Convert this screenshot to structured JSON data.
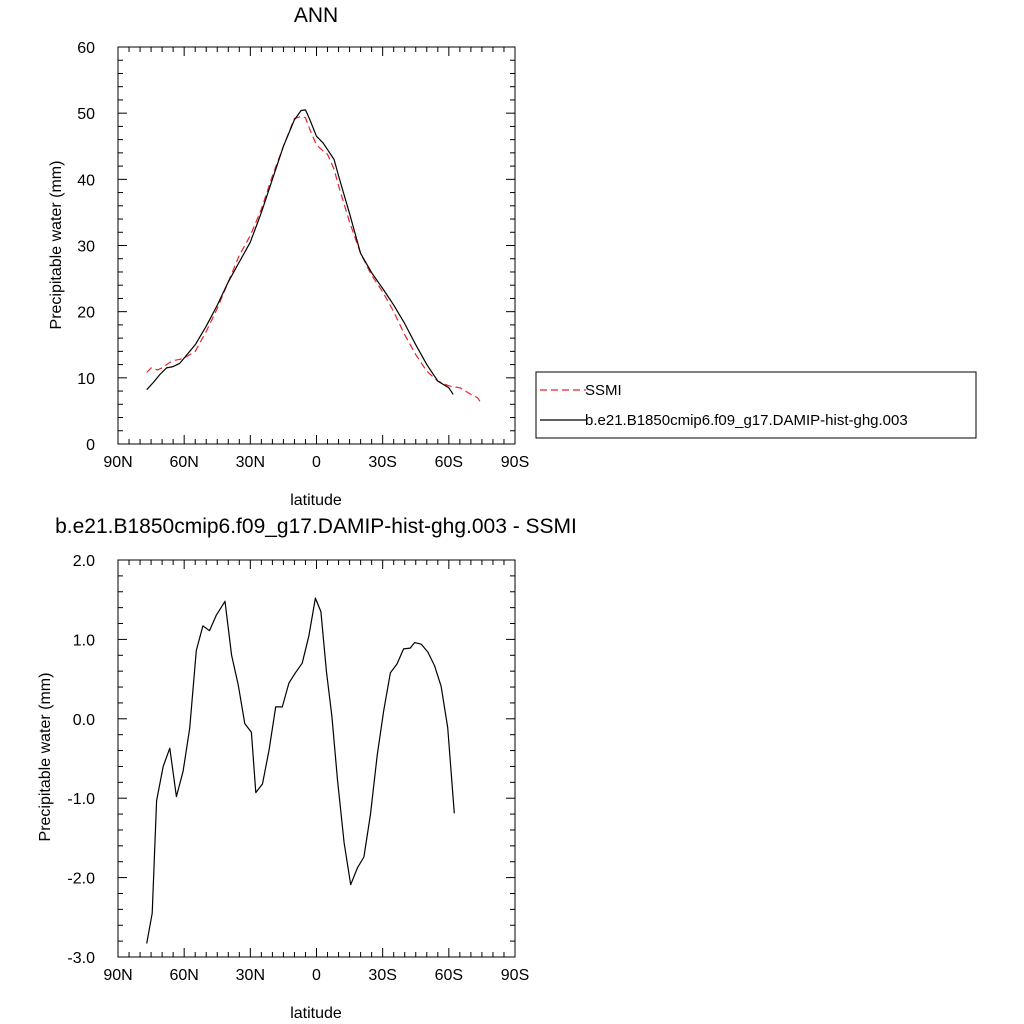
{
  "chart_data": [
    {
      "type": "line",
      "title": "ANN",
      "xlabel": "latitude",
      "ylabel": "Precipitable water (mm)",
      "xlim": [
        90,
        -90
      ],
      "ylim": [
        0,
        60
      ],
      "xticks": [
        90,
        60,
        30,
        0,
        -30,
        -60,
        -90
      ],
      "xtick_labels": [
        "90N",
        "60N",
        "30N",
        "0",
        "30S",
        "60S",
        "90S"
      ],
      "yticks": [
        0,
        10,
        20,
        30,
        40,
        50,
        60
      ],
      "ytick_labels": [
        "0",
        "10",
        "20",
        "30",
        "40",
        "50",
        "60"
      ],
      "legend_position": "right",
      "series": [
        {
          "name": "SSMI",
          "color": "#e8242c",
          "dash": "dashed",
          "x": [
            77,
            75,
            72,
            70,
            68,
            65,
            62,
            60,
            55,
            50,
            45,
            40,
            35,
            30,
            25,
            20,
            15,
            10,
            7,
            5,
            3,
            0,
            -3,
            -5,
            -8,
            -10,
            -15,
            -20,
            -25,
            -30,
            -35,
            -40,
            -45,
            -50,
            -55,
            -60,
            -65,
            -70,
            -73,
            -75
          ],
          "y": [
            10.8,
            11.5,
            11.2,
            11.5,
            12.0,
            12.6,
            12.8,
            13.0,
            14.0,
            17.0,
            20.5,
            24.5,
            28.5,
            31.5,
            35.5,
            40.5,
            45.0,
            49.2,
            49.5,
            49.3,
            47.5,
            45.2,
            44.3,
            43.8,
            41.5,
            39.0,
            33.5,
            28.8,
            25.5,
            23.0,
            20.0,
            16.5,
            13.5,
            11.0,
            9.5,
            8.8,
            8.5,
            7.5,
            7.0,
            6.0
          ]
        },
        {
          "name": "b.e21.B1850cmip6.f09_g17.DAMIP-hist-ghg.003",
          "color": "#000000",
          "dash": "solid",
          "x": [
            77,
            74,
            71,
            68,
            65,
            62,
            60,
            55,
            50,
            45,
            40,
            35,
            30,
            25,
            20,
            15,
            10,
            7,
            5,
            3,
            0,
            -3,
            -5,
            -8,
            -10,
            -15,
            -20,
            -25,
            -30,
            -35,
            -40,
            -45,
            -50,
            -55,
            -60,
            -62
          ],
          "y": [
            8.2,
            9.3,
            10.5,
            11.5,
            11.7,
            12.2,
            13.0,
            15.0,
            17.8,
            21.0,
            24.5,
            27.5,
            30.5,
            35.0,
            40.0,
            45.0,
            49.0,
            50.4,
            50.5,
            49.0,
            46.5,
            45.5,
            44.5,
            43.0,
            40.5,
            34.8,
            28.8,
            25.9,
            23.5,
            21.0,
            18.2,
            15.0,
            12.0,
            9.5,
            8.5,
            7.5
          ]
        }
      ]
    },
    {
      "type": "line",
      "title": "b.e21.B1850cmip6.f09_g17.DAMIP-hist-ghg.003 - SSMI",
      "xlabel": "latitude",
      "ylabel": "Precipitable water (mm)",
      "xlim": [
        90,
        -90
      ],
      "ylim": [
        -3.0,
        2.0
      ],
      "xticks": [
        90,
        60,
        30,
        0,
        -30,
        -60,
        -90
      ],
      "xtick_labels": [
        "90N",
        "60N",
        "30N",
        "0",
        "30S",
        "60S",
        "90S"
      ],
      "yticks": [
        -3.0,
        -2.0,
        -1.0,
        0.0,
        1.0,
        2.0
      ],
      "ytick_labels": [
        "-3.0",
        "-2.0",
        "-1.0",
        "0.0",
        "1.0",
        "2.0"
      ],
      "series": [
        {
          "name": "",
          "color": "#000000",
          "dash": "solid",
          "x": [
            77,
            74.5,
            72.5,
            69.5,
            66.5,
            63.5,
            60.5,
            57.5,
            54.5,
            51.5,
            48.5,
            45.5,
            41.5,
            38.5,
            35.5,
            32.5,
            29.5,
            27.5,
            24.5,
            21.5,
            18.5,
            15.5,
            12.5,
            9.5,
            6.5,
            3.5,
            0.5,
            -2.0,
            -4.5,
            -7.0,
            -9.5,
            -12.5,
            -15.5,
            -18.5,
            -21.5,
            -24.5,
            -27.5,
            -30.5,
            -33.5,
            -36.5,
            -39.5,
            -42.5,
            -44.5,
            -47.5,
            -50.5,
            -53.5,
            -56.5,
            -59.5,
            -62.5
          ],
          "y": [
            -2.83,
            -2.45,
            -1.03,
            -0.6,
            -0.37,
            -0.98,
            -0.66,
            -0.12,
            0.86,
            1.17,
            1.11,
            1.3,
            1.48,
            0.8,
            0.43,
            -0.06,
            -0.17,
            -0.93,
            -0.82,
            -0.39,
            0.15,
            0.15,
            0.45,
            0.58,
            0.7,
            1.04,
            1.52,
            1.35,
            0.6,
            0.03,
            -0.77,
            -1.56,
            -2.09,
            -1.88,
            -1.74,
            -1.2,
            -0.46,
            0.11,
            0.58,
            0.69,
            0.88,
            0.89,
            0.96,
            0.94,
            0.84,
            0.67,
            0.41,
            -0.11,
            -1.19
          ]
        }
      ]
    }
  ]
}
